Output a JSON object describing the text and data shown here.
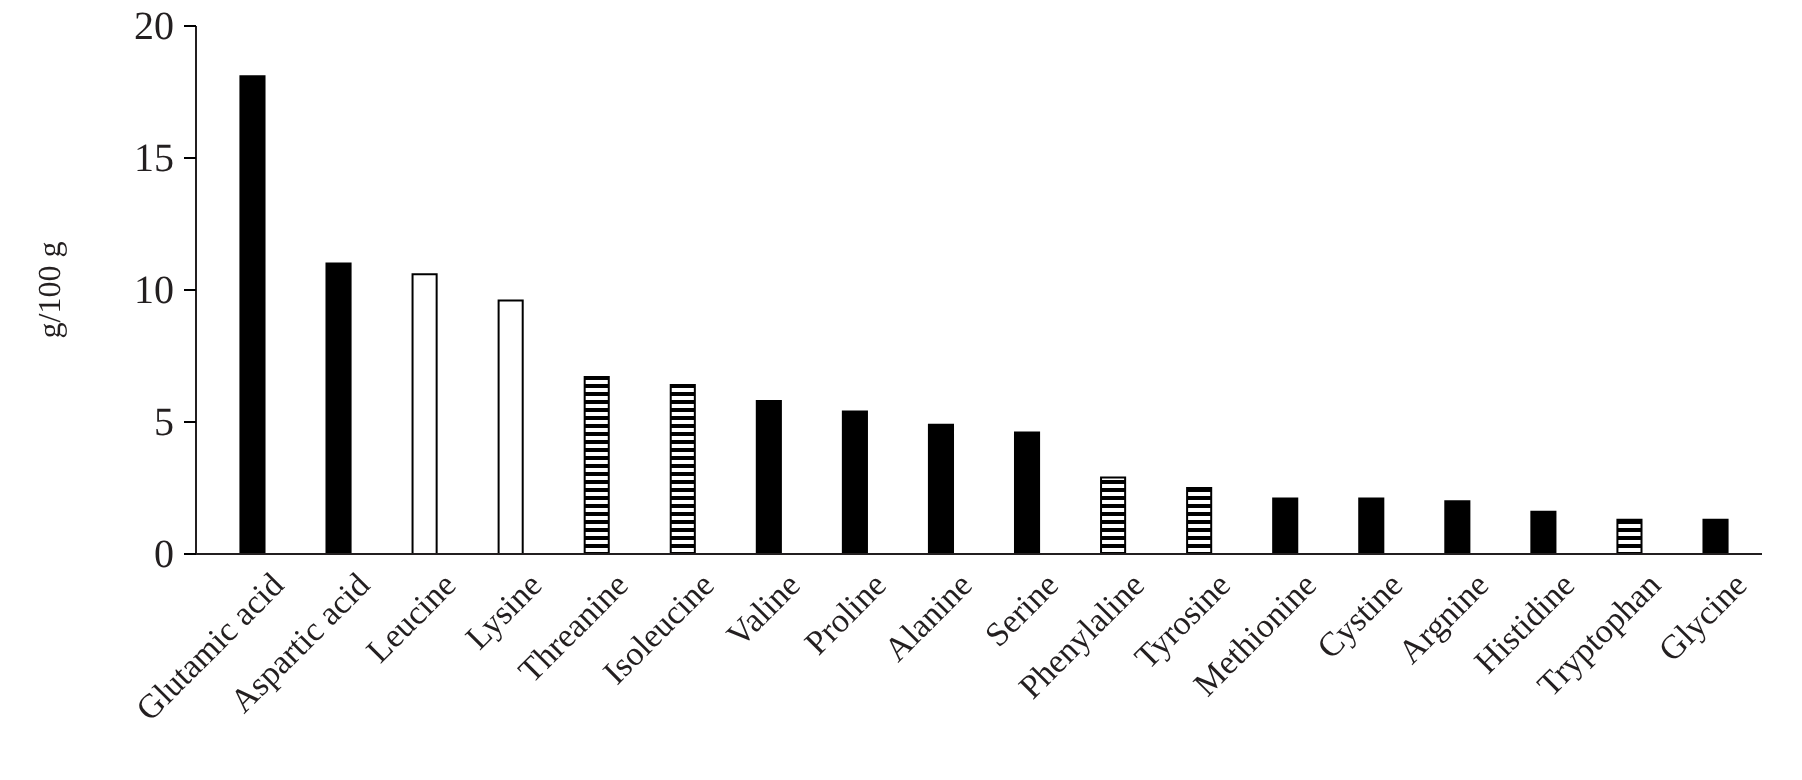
{
  "chart_data": {
    "type": "bar",
    "ylabel": "g/100 g",
    "categories": [
      "Glutamic acid",
      "Aspartic acid",
      "Leucine",
      "Lysine",
      "Threanine",
      "Isoleucine",
      "Valine",
      "Proline",
      "Alanine",
      "Serine",
      "Phenylaline",
      "Tyrosine",
      "Methionine",
      "Cystine",
      "Argnine",
      "Histidine",
      "Tryptophan",
      "Glycine"
    ],
    "values": [
      18.1,
      11.0,
      10.6,
      9.6,
      6.7,
      6.4,
      5.8,
      5.4,
      4.9,
      4.6,
      2.9,
      2.5,
      2.1,
      2.1,
      2.0,
      1.6,
      1.3,
      1.3
    ],
    "colors": [
      "#000000",
      "#000000",
      "#ffffff",
      "#ffffff",
      "#808080",
      "#808080",
      "#000000",
      "#000000",
      "#000000",
      "#000000",
      "#808080",
      "#808080",
      "#000000",
      "#000000",
      "#000000",
      "#000000",
      "#808080",
      "#000000"
    ],
    "ylim": [
      0,
      20
    ],
    "yticks": [
      0,
      5,
      10,
      15,
      20
    ],
    "grid": false
  }
}
